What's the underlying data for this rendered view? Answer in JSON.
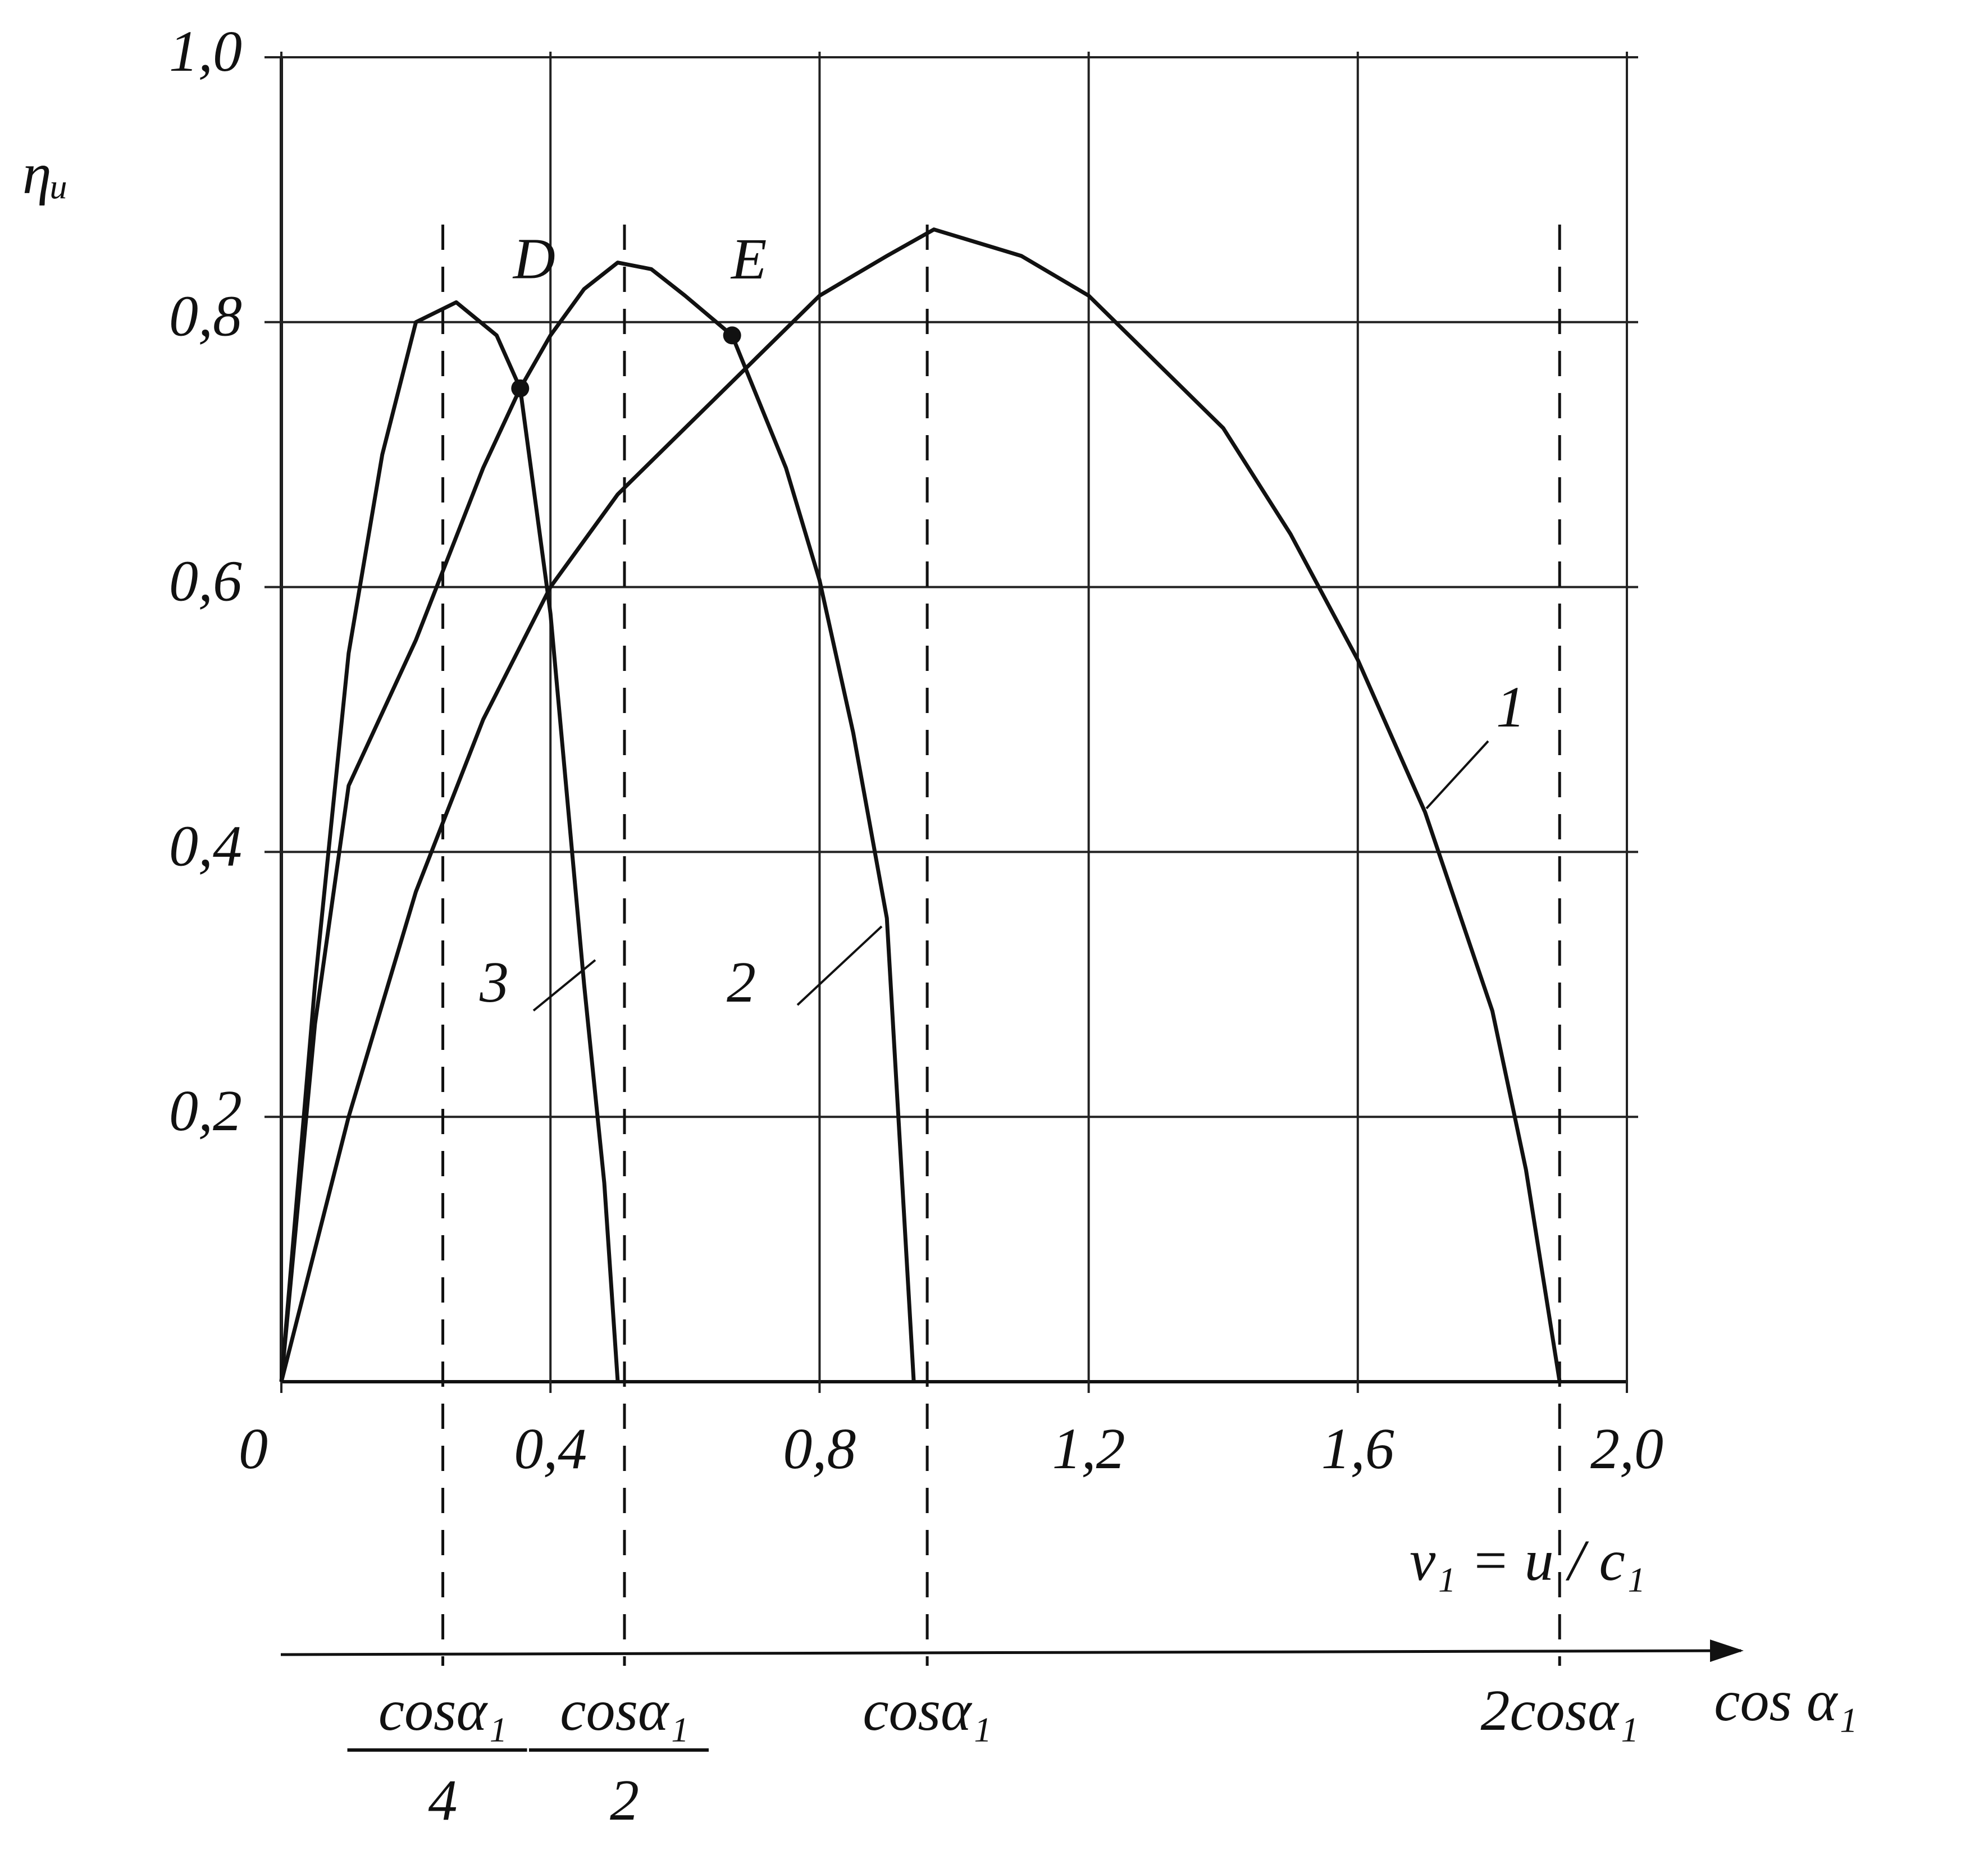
{
  "chart_data": {
    "type": "line",
    "y_label": "ηᵤ",
    "x_label": "ν₁ = u / c₁",
    "xlim": [
      0,
      2.0
    ],
    "ylim": [
      0,
      1.0
    ],
    "xticks": [
      0,
      {
        "value": 0.4,
        "label": "0,4"
      },
      {
        "value": 0.8,
        "label": "0,8"
      },
      {
        "value": 1.2,
        "label": "1,2"
      },
      {
        "value": 1.6,
        "label": "1,6"
      },
      {
        "value": 2.0,
        "label": "2,0"
      }
    ],
    "yticks": [
      {
        "value": 0.2,
        "label": "0,2"
      },
      {
        "value": 0.4,
        "label": "0,4"
      },
      {
        "value": 0.6,
        "label": "0,6"
      },
      {
        "value": 0.8,
        "label": "0,8"
      },
      {
        "value": 1.0,
        "label": "1,0"
      }
    ],
    "grid": true,
    "series": [
      {
        "name": "1",
        "color": "#111111",
        "x": [
          0,
          0.1,
          0.2,
          0.3,
          0.4,
          0.5,
          0.6,
          0.7,
          0.8,
          0.9,
          0.97,
          1.1,
          1.2,
          1.3,
          1.4,
          1.5,
          1.6,
          1.7,
          1.8,
          1.85,
          1.9
        ],
        "values": [
          0,
          0.2,
          0.37,
          0.5,
          0.6,
          0.67,
          0.72,
          0.77,
          0.82,
          0.85,
          0.87,
          0.85,
          0.82,
          0.77,
          0.72,
          0.64,
          0.545,
          0.43,
          0.28,
          0.16,
          0
        ]
      },
      {
        "name": "2",
        "color": "#111111",
        "x": [
          0,
          0.05,
          0.1,
          0.2,
          0.3,
          0.355,
          0.4,
          0.45,
          0.5,
          0.55,
          0.6,
          0.67,
          0.75,
          0.8,
          0.85,
          0.9,
          0.94
        ],
        "values": [
          0,
          0.27,
          0.45,
          0.56,
          0.69,
          0.75,
          0.79,
          0.825,
          0.845,
          0.84,
          0.82,
          0.79,
          0.69,
          0.605,
          0.49,
          0.35,
          0
        ]
      },
      {
        "name": "3",
        "color": "#111111",
        "x": [
          0,
          0.05,
          0.1,
          0.15,
          0.2,
          0.26,
          0.32,
          0.355,
          0.4,
          0.45,
          0.48,
          0.5
        ],
        "values": [
          0,
          0.3,
          0.55,
          0.7,
          0.8,
          0.815,
          0.79,
          0.75,
          0.58,
          0.3,
          0.15,
          0
        ]
      }
    ],
    "points": [
      {
        "label": "D",
        "x": 0.355,
        "y": 0.75
      },
      {
        "label": "E",
        "x": 0.67,
        "y": 0.79
      }
    ],
    "lower_axis_label": "cos α₁",
    "reference_lines": [
      {
        "x": 0.24,
        "label": "cosα₁",
        "denominator": "4"
      },
      {
        "x": 0.51,
        "label": "cosα₁",
        "denominator": "2"
      },
      {
        "x": 0.96,
        "label": "cosα₁"
      },
      {
        "x": 1.9,
        "label": "2cosα₁"
      }
    ]
  }
}
